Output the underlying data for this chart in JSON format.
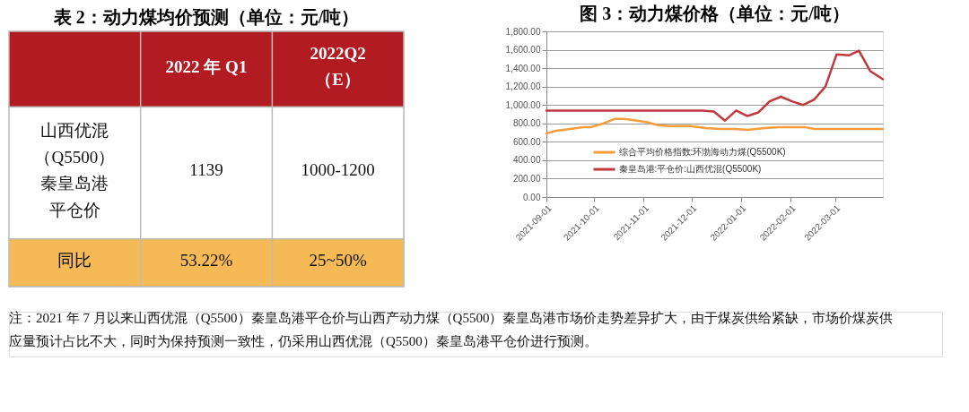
{
  "chart_data": [
    {
      "type": "other",
      "title": "表 2：动力煤均价预测（单位：元/吨）",
      "categories": [
        null,
        "2022 年 Q1",
        "2022Q2（E）"
      ],
      "y_categories": [
        "山西优混（Q5500）秦皇岛港平仓价",
        "同比"
      ],
      "cell_labels": [
        [
          "1139",
          "1000-1200"
        ],
        [
          "53.22%",
          "25~50%"
        ]
      ],
      "annotations": [
        "注：2021 年 7 月以来山西优混（Q5500）秦皇岛港平仓价与山西产动力煤（Q5500）秦皇岛港市场价走势差异扩大，由于煤炭供给紧缺，市场价煤炭供应量预计占比不大，同时为保持预测一致性，仍采用山西优混（Q5500）秦皇岛港平仓价进行预测。"
      ]
    },
    {
      "type": "line",
      "title": "图 3：动力煤价格（单位：元/吨）",
      "series": [
        {
          "name": "综合平均价格指数:环渤海动力煤(Q5500K)",
          "color": "#f59d3d",
          "x": [
            "2021-09-01",
            "2021-09-07",
            "2021-09-16",
            "2021-09-24",
            "2021-09-29",
            "2021-10-07",
            "2021-10-14",
            "2021-10-20",
            "2021-10-28",
            "2021-11-04",
            "2021-11-10",
            "2021-11-17",
            "2021-11-30",
            "2021-12-10",
            "2021-12-19",
            "2021-12-29",
            "2022-01-05",
            "2022-01-16",
            "2022-01-25",
            "2022-02-10",
            "2022-02-16",
            "2022-03-31"
          ],
          "values": [
            690,
            720,
            740,
            760,
            760,
            800,
            850,
            850,
            830,
            810,
            780,
            770,
            770,
            750,
            740,
            740,
            730,
            750,
            760,
            760,
            740,
            740
          ]
        },
        {
          "name": "秦皇岛港:平仓价:山西优混(Q5500K)",
          "color": "#c0393f",
          "x": [
            "2021-09-01",
            "2021-12-08",
            "2021-12-15",
            "2021-12-22",
            "2021-12-29",
            "2022-01-05",
            "2022-01-12",
            "2022-01-19",
            "2022-01-26",
            "2022-02-02",
            "2022-02-09",
            "2022-02-16",
            "2022-02-23",
            "2022-03-02",
            "2022-03-10",
            "2022-03-16",
            "2022-03-23",
            "2022-03-31"
          ],
          "values": [
            940,
            940,
            930,
            830,
            940,
            880,
            920,
            1040,
            1090,
            1040,
            1000,
            1060,
            1200,
            1550,
            1540,
            1590,
            1370,
            1280
          ]
        }
      ],
      "xlim": [
        "2021-09-01",
        "2022-03-31"
      ],
      "xticks": [
        "2021-09-01",
        "2021-10-01",
        "2021-11-01",
        "2021-12-01",
        "2022-01-01",
        "2022-02-01",
        "2022-03-01"
      ],
      "ylim": [
        0,
        1800
      ],
      "yticks": [
        {
          "value": 0,
          "label": "0.00"
        },
        {
          "value": 200,
          "label": "200.00"
        },
        {
          "value": 400,
          "label": "400.00"
        },
        {
          "value": 600,
          "label": "600.00"
        },
        {
          "value": 800,
          "label": "800.00"
        },
        {
          "value": 1000,
          "label": "1,000.00"
        },
        {
          "value": 1200,
          "label": "1,200.00"
        },
        {
          "value": 1400,
          "label": "1,400.00"
        },
        {
          "value": 1600,
          "label": "1,600.00"
        },
        {
          "value": 1800,
          "label": "1,800.00"
        }
      ],
      "grid": "y",
      "legend": "bottom",
      "line_style": "solid",
      "marker": "none"
    }
  ]
}
